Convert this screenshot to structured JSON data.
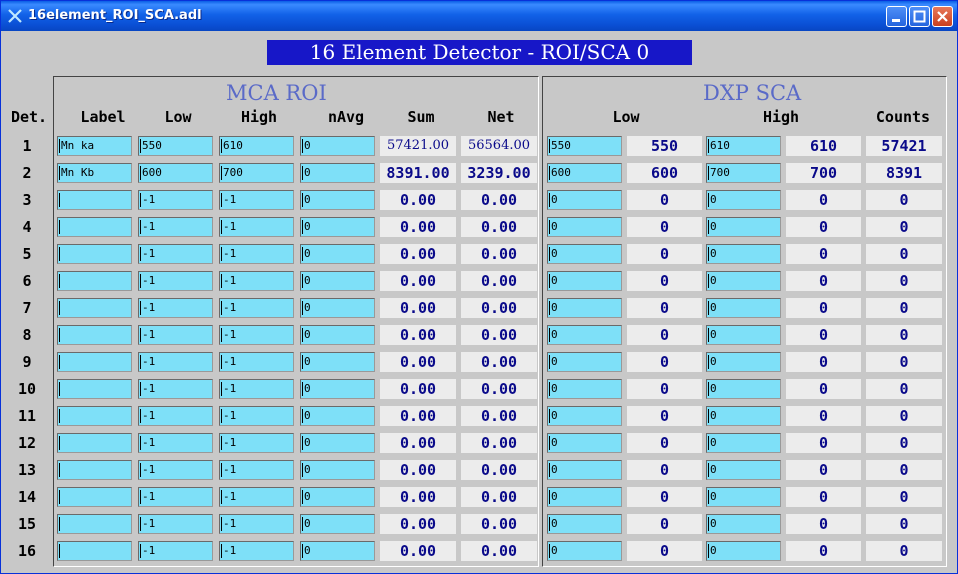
{
  "window": {
    "title": "16element_ROI_SCA.adl"
  },
  "banner": "16 Element Detector - ROI/SCA 0",
  "mca_roi": {
    "title": "MCA ROI",
    "headers": [
      "Label",
      "Low",
      "High",
      "nAvg",
      "Sum",
      "Net"
    ]
  },
  "dxp_sca": {
    "title": "DXP SCA",
    "headers": [
      "Low",
      "High",
      "Counts"
    ]
  },
  "det_header": "Det.",
  "rows": [
    {
      "det": "1",
      "label": "Mn ka",
      "low": "550",
      "high": "610",
      "navg": "0",
      "sum": "57421.00",
      "net": "56564.00",
      "sca_low_in": "550",
      "sca_low": "550",
      "sca_high_in": "610",
      "sca_high": "610",
      "counts": "57421"
    },
    {
      "det": "2",
      "label": "Mn Kb",
      "low": "600",
      "high": "700",
      "navg": "0",
      "sum": "8391.00",
      "net": "3239.00",
      "sca_low_in": "600",
      "sca_low": "600",
      "sca_high_in": "700",
      "sca_high": "700",
      "counts": "8391"
    },
    {
      "det": "3",
      "label": "",
      "low": "-1",
      "high": "-1",
      "navg": "0",
      "sum": "0.00",
      "net": "0.00",
      "sca_low_in": "0",
      "sca_low": "0",
      "sca_high_in": "0",
      "sca_high": "0",
      "counts": "0"
    },
    {
      "det": "4",
      "label": "",
      "low": "-1",
      "high": "-1",
      "navg": "0",
      "sum": "0.00",
      "net": "0.00",
      "sca_low_in": "0",
      "sca_low": "0",
      "sca_high_in": "0",
      "sca_high": "0",
      "counts": "0"
    },
    {
      "det": "5",
      "label": "",
      "low": "-1",
      "high": "-1",
      "navg": "0",
      "sum": "0.00",
      "net": "0.00",
      "sca_low_in": "0",
      "sca_low": "0",
      "sca_high_in": "0",
      "sca_high": "0",
      "counts": "0"
    },
    {
      "det": "6",
      "label": "",
      "low": "-1",
      "high": "-1",
      "navg": "0",
      "sum": "0.00",
      "net": "0.00",
      "sca_low_in": "0",
      "sca_low": "0",
      "sca_high_in": "0",
      "sca_high": "0",
      "counts": "0"
    },
    {
      "det": "7",
      "label": "",
      "low": "-1",
      "high": "-1",
      "navg": "0",
      "sum": "0.00",
      "net": "0.00",
      "sca_low_in": "0",
      "sca_low": "0",
      "sca_high_in": "0",
      "sca_high": "0",
      "counts": "0"
    },
    {
      "det": "8",
      "label": "",
      "low": "-1",
      "high": "-1",
      "navg": "0",
      "sum": "0.00",
      "net": "0.00",
      "sca_low_in": "0",
      "sca_low": "0",
      "sca_high_in": "0",
      "sca_high": "0",
      "counts": "0"
    },
    {
      "det": "9",
      "label": "",
      "low": "-1",
      "high": "-1",
      "navg": "0",
      "sum": "0.00",
      "net": "0.00",
      "sca_low_in": "0",
      "sca_low": "0",
      "sca_high_in": "0",
      "sca_high": "0",
      "counts": "0"
    },
    {
      "det": "10",
      "label": "",
      "low": "-1",
      "high": "-1",
      "navg": "0",
      "sum": "0.00",
      "net": "0.00",
      "sca_low_in": "0",
      "sca_low": "0",
      "sca_high_in": "0",
      "sca_high": "0",
      "counts": "0"
    },
    {
      "det": "11",
      "label": "",
      "low": "-1",
      "high": "-1",
      "navg": "0",
      "sum": "0.00",
      "net": "0.00",
      "sca_low_in": "0",
      "sca_low": "0",
      "sca_high_in": "0",
      "sca_high": "0",
      "counts": "0"
    },
    {
      "det": "12",
      "label": "",
      "low": "-1",
      "high": "-1",
      "navg": "0",
      "sum": "0.00",
      "net": "0.00",
      "sca_low_in": "0",
      "sca_low": "0",
      "sca_high_in": "0",
      "sca_high": "0",
      "counts": "0"
    },
    {
      "det": "13",
      "label": "",
      "low": "-1",
      "high": "-1",
      "navg": "0",
      "sum": "0.00",
      "net": "0.00",
      "sca_low_in": "0",
      "sca_low": "0",
      "sca_high_in": "0",
      "sca_high": "0",
      "counts": "0"
    },
    {
      "det": "14",
      "label": "",
      "low": "-1",
      "high": "-1",
      "navg": "0",
      "sum": "0.00",
      "net": "0.00",
      "sca_low_in": "0",
      "sca_low": "0",
      "sca_high_in": "0",
      "sca_high": "0",
      "counts": "0"
    },
    {
      "det": "15",
      "label": "",
      "low": "-1",
      "high": "-1",
      "navg": "0",
      "sum": "0.00",
      "net": "0.00",
      "sca_low_in": "0",
      "sca_low": "0",
      "sca_high_in": "0",
      "sca_high": "0",
      "counts": "0"
    },
    {
      "det": "16",
      "label": "",
      "low": "-1",
      "high": "-1",
      "navg": "0",
      "sum": "0.00",
      "net": "0.00",
      "sca_low_in": "0",
      "sca_low": "0",
      "sca_high_in": "0",
      "sca_high": "0",
      "counts": "0"
    }
  ],
  "colors": {
    "input_bg": "#7ee0f8",
    "readout_text": "#0a0a8a",
    "banner_bg": "#1717c8",
    "panel_title": "#5a6ac8"
  },
  "icons": {
    "app": "x-icon",
    "minimize": "minimize-icon",
    "maximize": "maximize-icon",
    "close": "close-icon"
  }
}
